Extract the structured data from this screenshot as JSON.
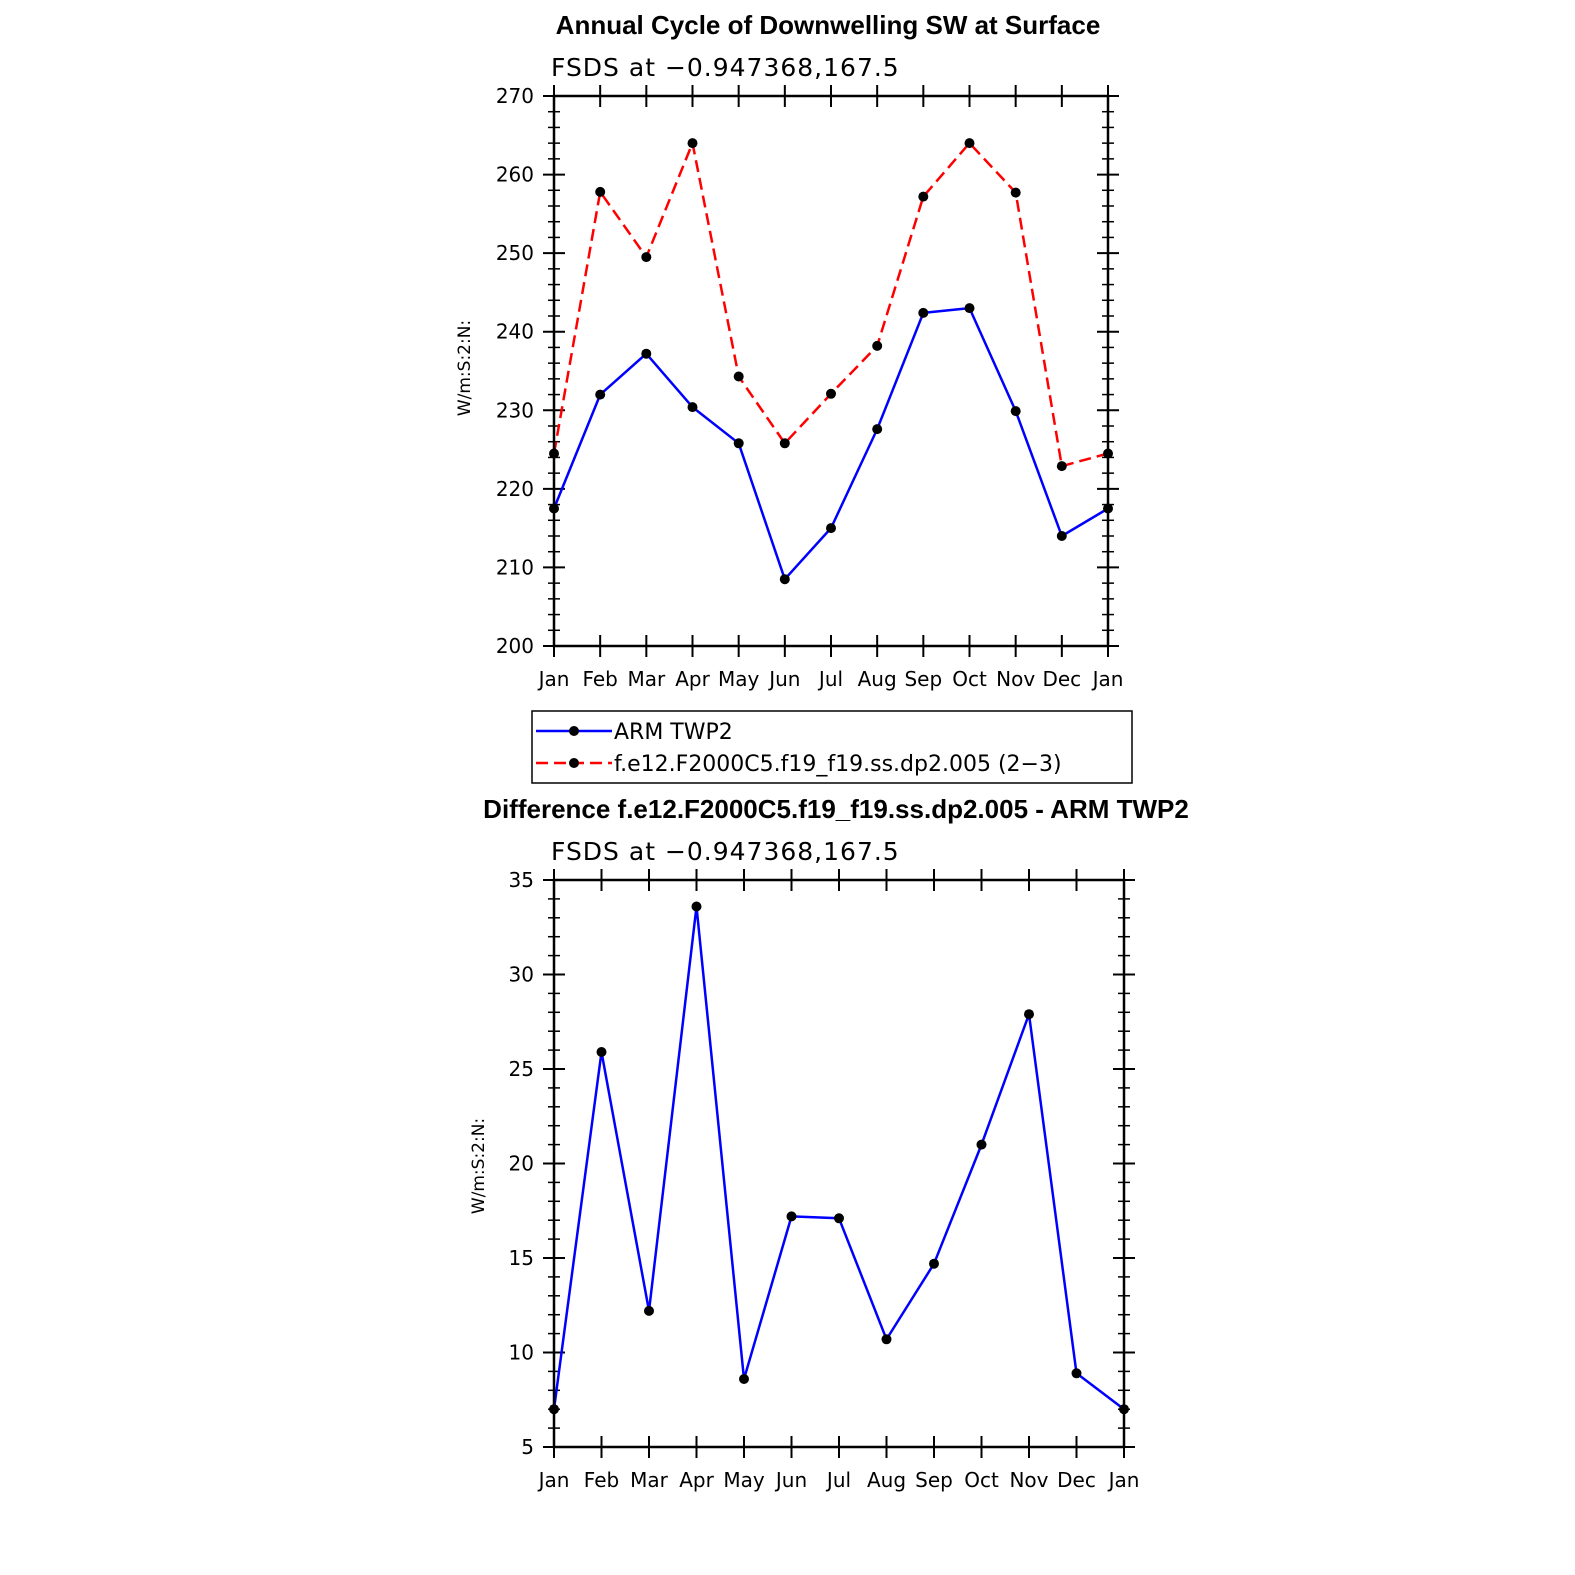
{
  "chart_data": [
    {
      "type": "line",
      "title": "Annual Cycle of Downwelling SW at Surface",
      "subtitle": "FSDS at −0.947368,167.5",
      "ylabel": "W/m:S:2:N:",
      "xlabel": "",
      "ylim": [
        200,
        270
      ],
      "yticks": [
        200,
        210,
        220,
        230,
        240,
        250,
        260,
        270
      ],
      "categories": [
        "Jan",
        "Feb",
        "Mar",
        "Apr",
        "May",
        "Jun",
        "Jul",
        "Aug",
        "Sep",
        "Oct",
        "Nov",
        "Dec",
        "Jan"
      ],
      "grid": false,
      "legend_position": "bottom",
      "series": [
        {
          "name": "ARM TWP2",
          "color": "#0000ff",
          "dash": "solid",
          "values": [
            217.5,
            232.0,
            237.2,
            230.4,
            225.8,
            208.5,
            215.0,
            227.6,
            242.4,
            243.0,
            229.9,
            214.0,
            217.5
          ]
        },
        {
          "name": "f.e12.F2000C5.f19_f19.ss.dp2.005 (2−3)",
          "color": "#ff0000",
          "dash": "dashed",
          "values": [
            224.5,
            257.8,
            249.5,
            264.0,
            234.3,
            225.8,
            232.1,
            238.2,
            257.2,
            264.0,
            257.7,
            222.9,
            224.5
          ]
        }
      ]
    },
    {
      "type": "line",
      "title": "Difference f.e12.F2000C5.f19_f19.ss.dp2.005 - ARM TWP2",
      "subtitle": "FSDS at −0.947368,167.5",
      "ylabel": "W/m:S:2:N:",
      "xlabel": "",
      "ylim": [
        5,
        35
      ],
      "yticks": [
        5,
        10,
        15,
        20,
        25,
        30,
        35
      ],
      "categories": [
        "Jan",
        "Feb",
        "Mar",
        "Apr",
        "May",
        "Jun",
        "Jul",
        "Aug",
        "Sep",
        "Oct",
        "Nov",
        "Dec",
        "Jan"
      ],
      "grid": false,
      "series": [
        {
          "color": "#0000ff",
          "dash": "solid",
          "values": [
            7.0,
            25.9,
            12.2,
            33.6,
            8.6,
            17.2,
            17.1,
            10.7,
            14.7,
            21.0,
            27.9,
            8.9,
            7.0
          ]
        }
      ]
    }
  ]
}
